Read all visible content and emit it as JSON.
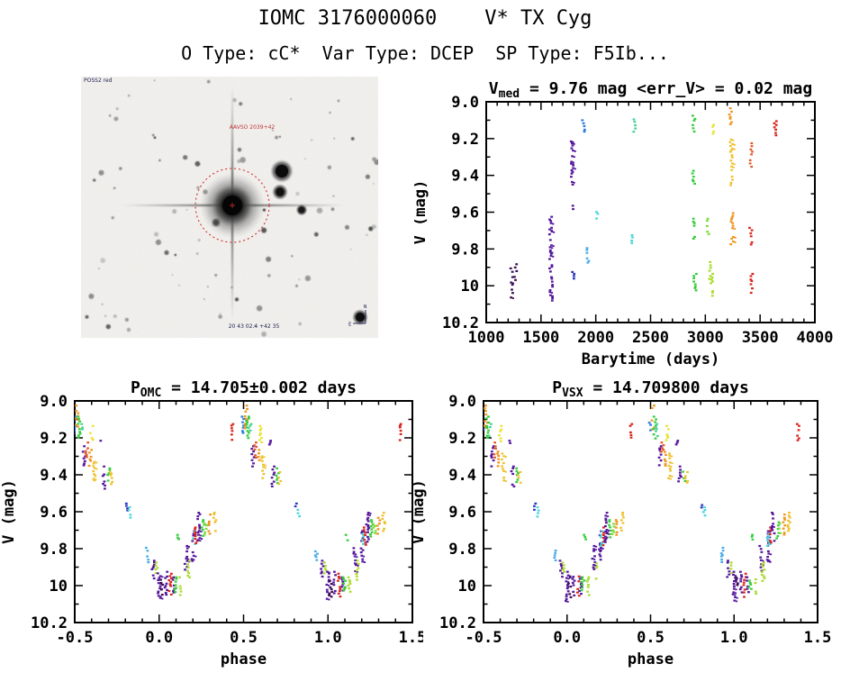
{
  "header": {
    "title": "IOMC 3176000060    V* TX Cyg",
    "subtitle": "O Type: cC*  Var Type: DCEP  SP Type: F5Ib..."
  },
  "finding_chart": {
    "survey_label": "POSS2 red",
    "target_label": "AAVSO 2039+42",
    "coords_label": "20 43 02.4 +42 35",
    "compass_north": "N",
    "compass_east": "E"
  },
  "palette": [
    "#3a0d52",
    "#55179e",
    "#2936c4",
    "#2d7bdc",
    "#49ace8",
    "#49d6da",
    "#43d393",
    "#35cd3b",
    "#7ddc3b",
    "#aadc2c",
    "#e9e333",
    "#eec22e",
    "#f0941f",
    "#e2592a",
    "#d9251d"
  ],
  "chart_data": [
    {
      "id": "lightcurve",
      "type": "scatter",
      "title": "V_med = 9.76 mag <err_V> = 0.02 mag",
      "title_parts": {
        "pre": "V",
        "sub": "med",
        "post": " = 9.76 mag <err_V> = 0.02 mag"
      },
      "xlabel": "Barytime (days)",
      "ylabel": "V (mag)",
      "xlim": [
        1000,
        4000
      ],
      "ylim": [
        10.2,
        9.0
      ],
      "xticks": [
        1000,
        1500,
        2000,
        2500,
        3000,
        3500,
        4000
      ],
      "yticks": [
        9.0,
        9.2,
        9.4,
        9.6,
        9.8,
        10.0,
        10.2
      ],
      "x_minor_step": 100,
      "y_minor_step": 0.1,
      "grid": false,
      "clusters": [
        [
          1230,
          9.9,
          10.06,
          0
        ],
        [
          1268,
          9.87,
          9.97,
          0
        ],
        [
          1588,
          9.62,
          9.92,
          1
        ],
        [
          1594,
          9.93,
          10.08,
          1
        ],
        [
          1782,
          9.21,
          9.47,
          1
        ],
        [
          1800,
          9.56,
          9.59,
          1
        ],
        [
          1795,
          9.92,
          9.96,
          2
        ],
        [
          1888,
          9.08,
          9.16,
          3
        ],
        [
          1930,
          9.79,
          9.87,
          4
        ],
        [
          2010,
          9.58,
          9.64,
          5
        ],
        [
          2330,
          9.72,
          9.78,
          5
        ],
        [
          2352,
          9.09,
          9.17,
          6
        ],
        [
          2896,
          9.07,
          9.16,
          7
        ],
        [
          2893,
          9.37,
          9.45,
          7
        ],
        [
          2900,
          9.63,
          9.74,
          7
        ],
        [
          2906,
          9.93,
          10.03,
          7
        ],
        [
          3020,
          9.63,
          9.72,
          8
        ],
        [
          3040,
          9.85,
          9.97,
          9
        ],
        [
          3056,
          9.93,
          10.06,
          9
        ],
        [
          3072,
          9.12,
          9.2,
          10
        ],
        [
          3230,
          9.03,
          9.13,
          12
        ],
        [
          3238,
          9.2,
          9.45,
          11
        ],
        [
          3244,
          9.6,
          9.78,
          12
        ],
        [
          3418,
          9.22,
          9.35,
          13
        ],
        [
          3414,
          9.68,
          9.79,
          14
        ],
        [
          3426,
          9.93,
          10.06,
          14
        ],
        [
          3640,
          9.1,
          9.2,
          14
        ]
      ]
    },
    {
      "id": "phase_omc",
      "type": "scatter",
      "title": "P_OMC = 14.705±0.002 days",
      "title_parts": {
        "pre": "P",
        "sub": "OMC",
        "post": " = 14.705±0.002 days"
      },
      "xlabel": "phase",
      "ylabel": "V (mag)",
      "xlim": [
        -0.5,
        1.5
      ],
      "ylim": [
        10.2,
        9.0
      ],
      "xticks": [
        -0.5,
        0.0,
        0.5,
        1.0,
        1.5
      ],
      "yticks": [
        9.0,
        9.2,
        9.4,
        9.6,
        9.8,
        10.0,
        10.2
      ],
      "x_minor_step": 0.1,
      "y_minor_step": 0.1,
      "grid": false,
      "clusters": [
        [
          -0.505,
          9.08,
          9.17,
          3
        ],
        [
          -0.485,
          9.02,
          9.15,
          12
        ],
        [
          -0.475,
          9.08,
          9.2,
          7
        ],
        [
          -0.462,
          9.12,
          9.19,
          6
        ],
        [
          -0.4,
          9.13,
          9.22,
          10
        ],
        [
          -0.445,
          9.24,
          9.35,
          1
        ],
        [
          -0.428,
          9.22,
          9.31,
          13
        ],
        [
          -0.408,
          9.26,
          9.36,
          12
        ],
        [
          -0.385,
          9.28,
          9.43,
          11
        ],
        [
          -0.34,
          9.21,
          9.24,
          1
        ],
        [
          -0.325,
          9.35,
          9.47,
          1
        ],
        [
          -0.3,
          9.36,
          9.44,
          7
        ],
        [
          -0.285,
          9.38,
          9.45,
          11
        ],
        [
          -0.19,
          9.55,
          9.59,
          2
        ],
        [
          -0.175,
          9.57,
          9.63,
          5
        ],
        [
          -0.07,
          9.79,
          9.87,
          4
        ],
        [
          -0.035,
          9.86,
          9.96,
          1
        ],
        [
          -0.018,
          9.87,
          9.93,
          9
        ],
        [
          0.0,
          9.92,
          10.08,
          1
        ],
        [
          0.016,
          9.95,
          10.06,
          0
        ],
        [
          0.04,
          9.92,
          10.05,
          1
        ],
        [
          0.065,
          9.93,
          10.06,
          14
        ],
        [
          0.082,
          9.95,
          10.04,
          1
        ],
        [
          0.096,
          9.95,
          10.03,
          7
        ],
        [
          0.11,
          9.72,
          9.75,
          7
        ],
        [
          0.125,
          9.95,
          10.05,
          9
        ],
        [
          0.16,
          9.78,
          9.92,
          1
        ],
        [
          0.175,
          9.86,
          9.97,
          9
        ],
        [
          0.2,
          9.7,
          9.87,
          1
        ],
        [
          0.206,
          9.7,
          9.78,
          5
        ],
        [
          0.22,
          9.68,
          9.78,
          14
        ],
        [
          0.235,
          9.6,
          9.76,
          1
        ],
        [
          0.26,
          9.64,
          9.74,
          7
        ],
        [
          0.275,
          9.66,
          9.72,
          8
        ],
        [
          0.3,
          9.61,
          9.72,
          12
        ],
        [
          0.33,
          9.6,
          9.7,
          11
        ],
        [
          0.43,
          9.12,
          9.22,
          14
        ]
      ]
    },
    {
      "id": "phase_vsx",
      "type": "scatter",
      "title": "P_VSX = 14.709800 days",
      "title_parts": {
        "pre": "P",
        "sub": "VSX",
        "post": " = 14.709800 days"
      },
      "xlabel": "phase",
      "ylabel": "V (mag)",
      "xlim": [
        -0.5,
        1.5
      ],
      "ylim": [
        10.2,
        9.0
      ],
      "xticks": [
        -0.5,
        0.0,
        0.5,
        1.0,
        1.5
      ],
      "yticks": [
        9.0,
        9.2,
        9.4,
        9.6,
        9.8,
        10.0,
        10.2
      ],
      "x_minor_step": 0.1,
      "y_minor_step": 0.1,
      "grid": false,
      "clusters": [
        [
          -0.505,
          9.08,
          9.17,
          3
        ],
        [
          -0.485,
          9.02,
          9.15,
          12
        ],
        [
          -0.475,
          9.08,
          9.2,
          7
        ],
        [
          -0.462,
          9.12,
          9.19,
          6
        ],
        [
          -0.4,
          9.13,
          9.22,
          10
        ],
        [
          -0.445,
          9.24,
          9.35,
          1
        ],
        [
          -0.428,
          9.22,
          9.31,
          13
        ],
        [
          -0.408,
          9.26,
          9.36,
          12
        ],
        [
          -0.385,
          9.28,
          9.43,
          11
        ],
        [
          -0.34,
          9.21,
          9.24,
          1
        ],
        [
          -0.325,
          9.35,
          9.47,
          1
        ],
        [
          -0.3,
          9.36,
          9.44,
          7
        ],
        [
          -0.285,
          9.38,
          9.45,
          11
        ],
        [
          -0.19,
          9.55,
          9.59,
          2
        ],
        [
          -0.175,
          9.57,
          9.63,
          5
        ],
        [
          -0.07,
          9.79,
          9.87,
          4
        ],
        [
          -0.035,
          9.86,
          9.96,
          1
        ],
        [
          -0.018,
          9.87,
          9.93,
          9
        ],
        [
          0.0,
          9.92,
          10.08,
          1
        ],
        [
          0.016,
          9.95,
          10.06,
          0
        ],
        [
          0.04,
          9.92,
          10.05,
          1
        ],
        [
          0.065,
          9.93,
          10.06,
          14
        ],
        [
          0.082,
          9.95,
          10.04,
          1
        ],
        [
          0.096,
          9.95,
          10.03,
          7
        ],
        [
          0.11,
          9.72,
          9.75,
          7
        ],
        [
          0.125,
          9.95,
          10.05,
          9
        ],
        [
          0.16,
          9.78,
          9.92,
          1
        ],
        [
          0.175,
          9.86,
          9.97,
          9
        ],
        [
          0.2,
          9.7,
          9.87,
          1
        ],
        [
          0.206,
          9.7,
          9.78,
          5
        ],
        [
          0.22,
          9.68,
          9.78,
          14
        ],
        [
          0.235,
          9.6,
          9.76,
          1
        ],
        [
          0.26,
          9.64,
          9.74,
          7
        ],
        [
          0.275,
          9.66,
          9.72,
          8
        ],
        [
          0.3,
          9.61,
          9.72,
          12
        ],
        [
          0.33,
          9.6,
          9.7,
          11
        ],
        [
          0.385,
          9.12,
          9.22,
          14
        ]
      ]
    }
  ]
}
